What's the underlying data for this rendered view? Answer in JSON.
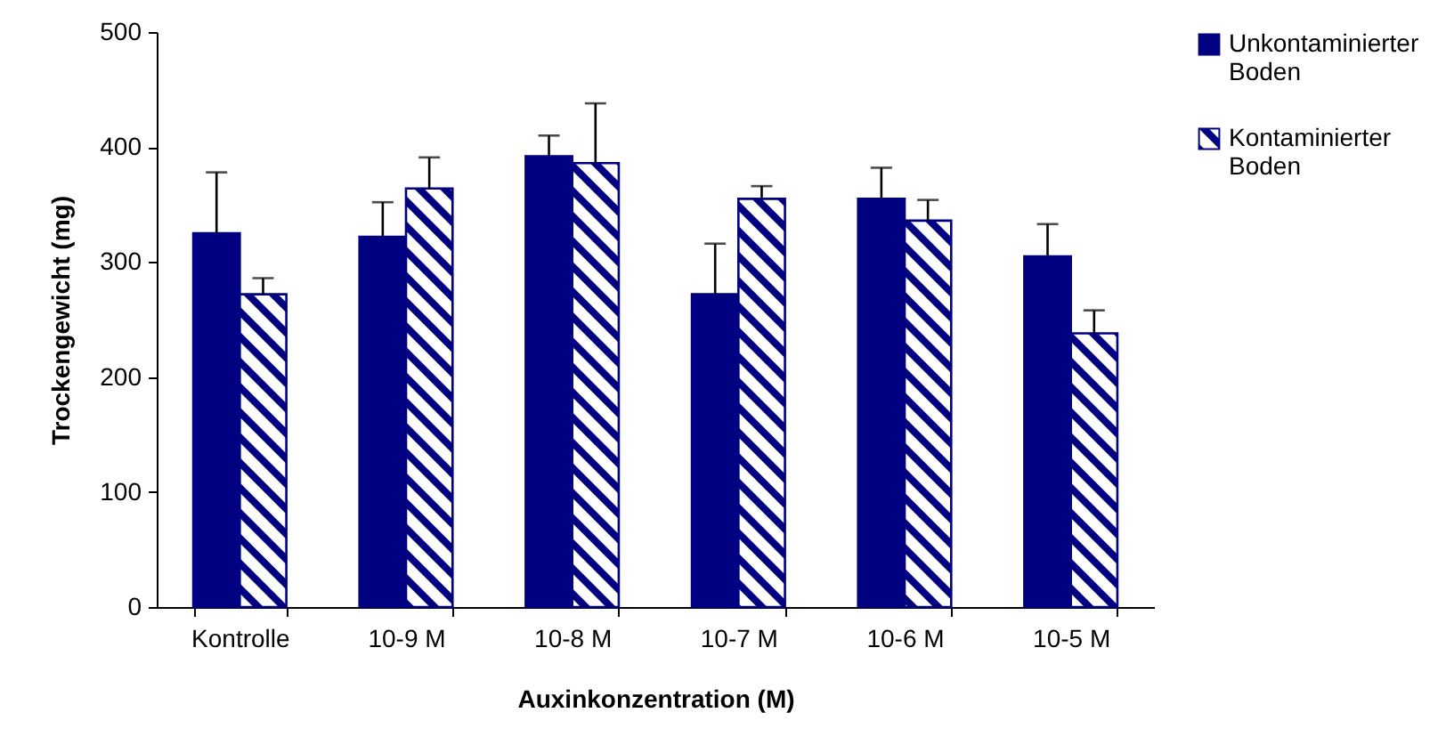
{
  "chart_data": {
    "type": "bar",
    "xlabel": "Auxinkonzentration (M)",
    "ylabel": "Trockengewicht (mg)",
    "categories": [
      "Kontrolle",
      "10-9 M",
      "10-8 M",
      "10-7 M",
      "10-6 M",
      "10-5 M"
    ],
    "series": [
      {
        "name": "Unkontaminierter Boden",
        "color": "#000080",
        "values": [
          325,
          322,
          392,
          272,
          355,
          305
        ],
        "errors": [
          [
            325,
            378
          ],
          [
            322,
            352
          ],
          [
            392,
            410
          ],
          [
            272,
            316
          ],
          [
            355,
            382
          ],
          [
            305,
            333
          ]
        ]
      },
      {
        "name": "Kontaminierter Boden",
        "color": "#000080",
        "values": [
          272,
          364,
          386,
          355,
          336,
          238
        ],
        "errors": [
          [
            272,
            286
          ],
          [
            364,
            391
          ],
          [
            386,
            438
          ],
          [
            355,
            366
          ],
          [
            336,
            354
          ],
          [
            238,
            258
          ]
        ]
      }
    ],
    "ylim": [
      0,
      500
    ],
    "yticks": [
      0,
      100,
      200,
      300,
      400,
      500
    ],
    "grid": false,
    "legend": "right"
  }
}
